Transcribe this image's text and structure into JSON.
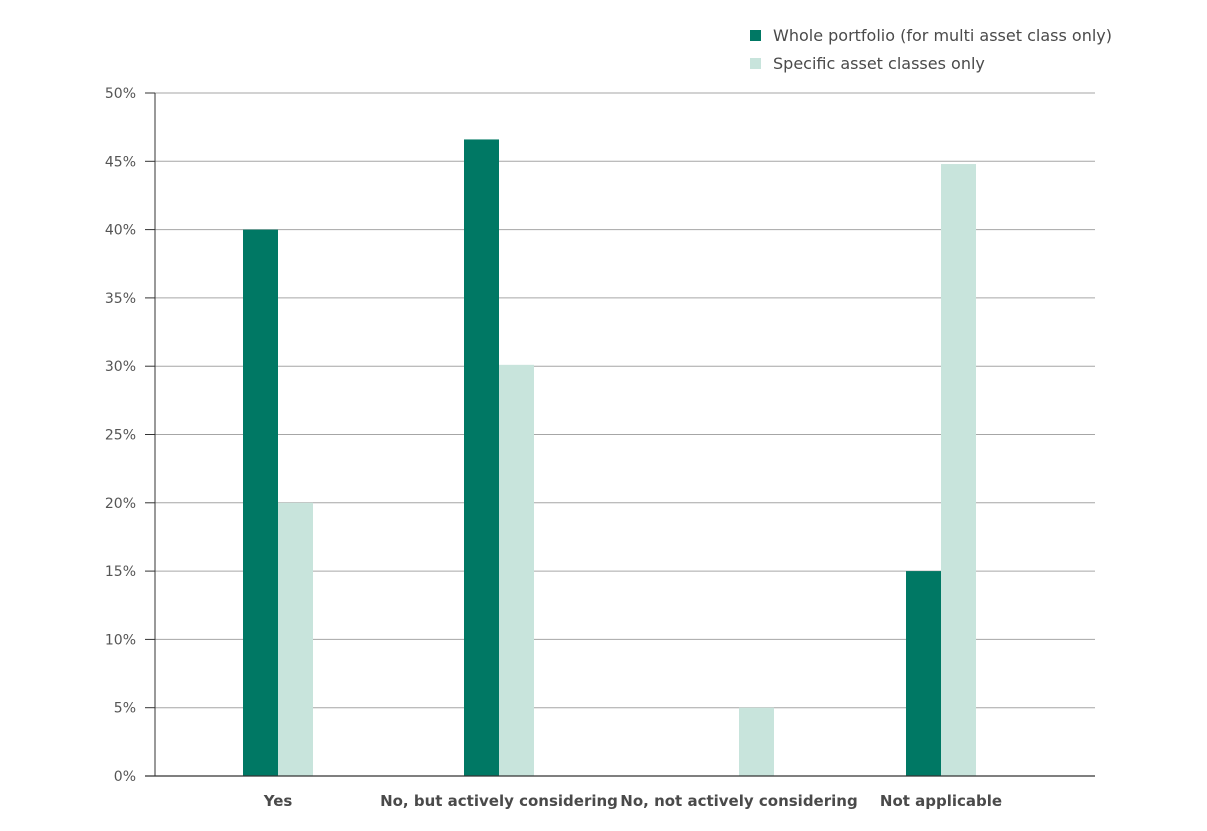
{
  "chart_data": {
    "type": "bar",
    "categories": [
      "Yes",
      "No, but actively considering",
      "No, not actively considering",
      "Not applicable"
    ],
    "series": [
      {
        "name": "Whole portfolio (for multi asset class only)",
        "values": [
          40,
          46.6,
          0,
          15
        ],
        "color": "#007864"
      },
      {
        "name": "Specific asset classes only",
        "values": [
          20,
          30.1,
          5,
          44.8
        ],
        "color": "#c8e4dc"
      }
    ],
    "ylim": [
      0,
      50
    ],
    "yticks": [
      "0%",
      "5%",
      "10%",
      "15%",
      "20%",
      "25%",
      "30%",
      "35%",
      "40%",
      "45%",
      "50%"
    ],
    "ytick_values": [
      0,
      5,
      10,
      15,
      20,
      25,
      30,
      35,
      40,
      45,
      50
    ],
    "grid": true,
    "legend_position": "top-right"
  }
}
